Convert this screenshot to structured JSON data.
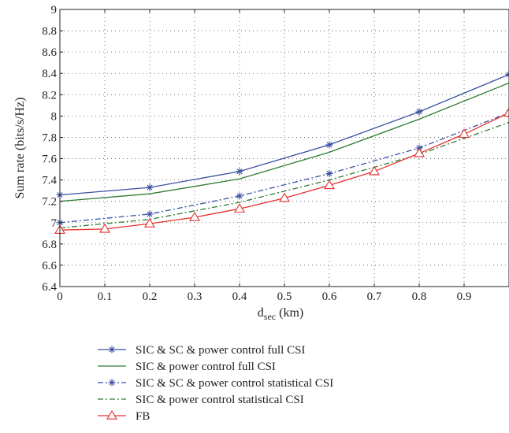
{
  "chart_data": {
    "type": "line",
    "xlabel": "d",
    "xlabel_subscript": "sec",
    "xlabel_unit": " (km)",
    "ylabel": "Sum rate (bits/s/Hz)",
    "xlim": [
      0,
      1.0
    ],
    "ylim": [
      6.4,
      9
    ],
    "x_ticks": [
      0,
      0.1,
      0.2,
      0.3,
      0.4,
      0.5,
      0.6,
      0.7,
      0.8,
      0.9
    ],
    "x_tick_labels": [
      "0",
      "0.1",
      "0.2",
      "0.3",
      "0.4",
      "0.5",
      "0.6",
      "0.7",
      "0.8",
      "0.9"
    ],
    "y_ticks": [
      6.4,
      6.6,
      6.8,
      7,
      7.2,
      7.4,
      7.6,
      7.8,
      8,
      8.2,
      8.4,
      8.6,
      8.8,
      9
    ],
    "y_tick_labels": [
      "6.4",
      "6.6",
      "6.8",
      "7",
      "7.2",
      "7.4",
      "7.6",
      "7.8",
      "8",
      "8.2",
      "8.4",
      "8.6",
      "8.8",
      "9"
    ],
    "grid": true,
    "legend_position": "below",
    "series": [
      {
        "name": "SIC & SC & power control full CSI",
        "color": "#3a4fa3",
        "dash": "solid",
        "marker": "star",
        "x": [
          0,
          0.2,
          0.4,
          0.6,
          0.8,
          1.0
        ],
        "y": [
          7.26,
          7.33,
          7.48,
          7.73,
          8.04,
          8.39
        ],
        "marker_x": [
          0,
          0.2,
          0.4,
          0.6,
          0.8,
          1.0
        ]
      },
      {
        "name": "SIC & power control full CSI",
        "color": "#2e7d32",
        "dash": "solid",
        "marker": "none",
        "x": [
          0,
          0.2,
          0.4,
          0.6,
          0.8,
          1.0
        ],
        "y": [
          7.2,
          7.27,
          7.41,
          7.66,
          7.97,
          8.31
        ],
        "marker_x": []
      },
      {
        "name": "SIC & SC & power control statistical CSI",
        "color": "#3a4fa3",
        "dash": "dashdot",
        "marker": "star",
        "x": [
          0,
          0.2,
          0.4,
          0.6,
          0.8,
          1.0
        ],
        "y": [
          7.0,
          7.08,
          7.25,
          7.46,
          7.7,
          8.03
        ],
        "marker_x": [
          0,
          0.2,
          0.4,
          0.6,
          0.8,
          1.0
        ]
      },
      {
        "name": "SIC & power control statistical CSI",
        "color": "#2e7d32",
        "dash": "dashdot",
        "marker": "none",
        "x": [
          0,
          0.2,
          0.4,
          0.6,
          0.8,
          1.0
        ],
        "y": [
          6.95,
          7.03,
          7.19,
          7.4,
          7.64,
          7.94
        ],
        "marker_x": []
      },
      {
        "name": "FB",
        "color": "#e5312e",
        "dash": "solid",
        "marker": "triangle",
        "x": [
          0,
          0.1,
          0.2,
          0.3,
          0.4,
          0.5,
          0.6,
          0.7,
          0.8,
          0.9,
          1.0
        ],
        "y": [
          6.93,
          6.94,
          6.99,
          7.05,
          7.13,
          7.23,
          7.35,
          7.48,
          7.65,
          7.83,
          8.03
        ],
        "marker_x": [
          0,
          0.1,
          0.2,
          0.3,
          0.4,
          0.5,
          0.6,
          0.7,
          0.8,
          0.9,
          1.0
        ]
      }
    ]
  }
}
